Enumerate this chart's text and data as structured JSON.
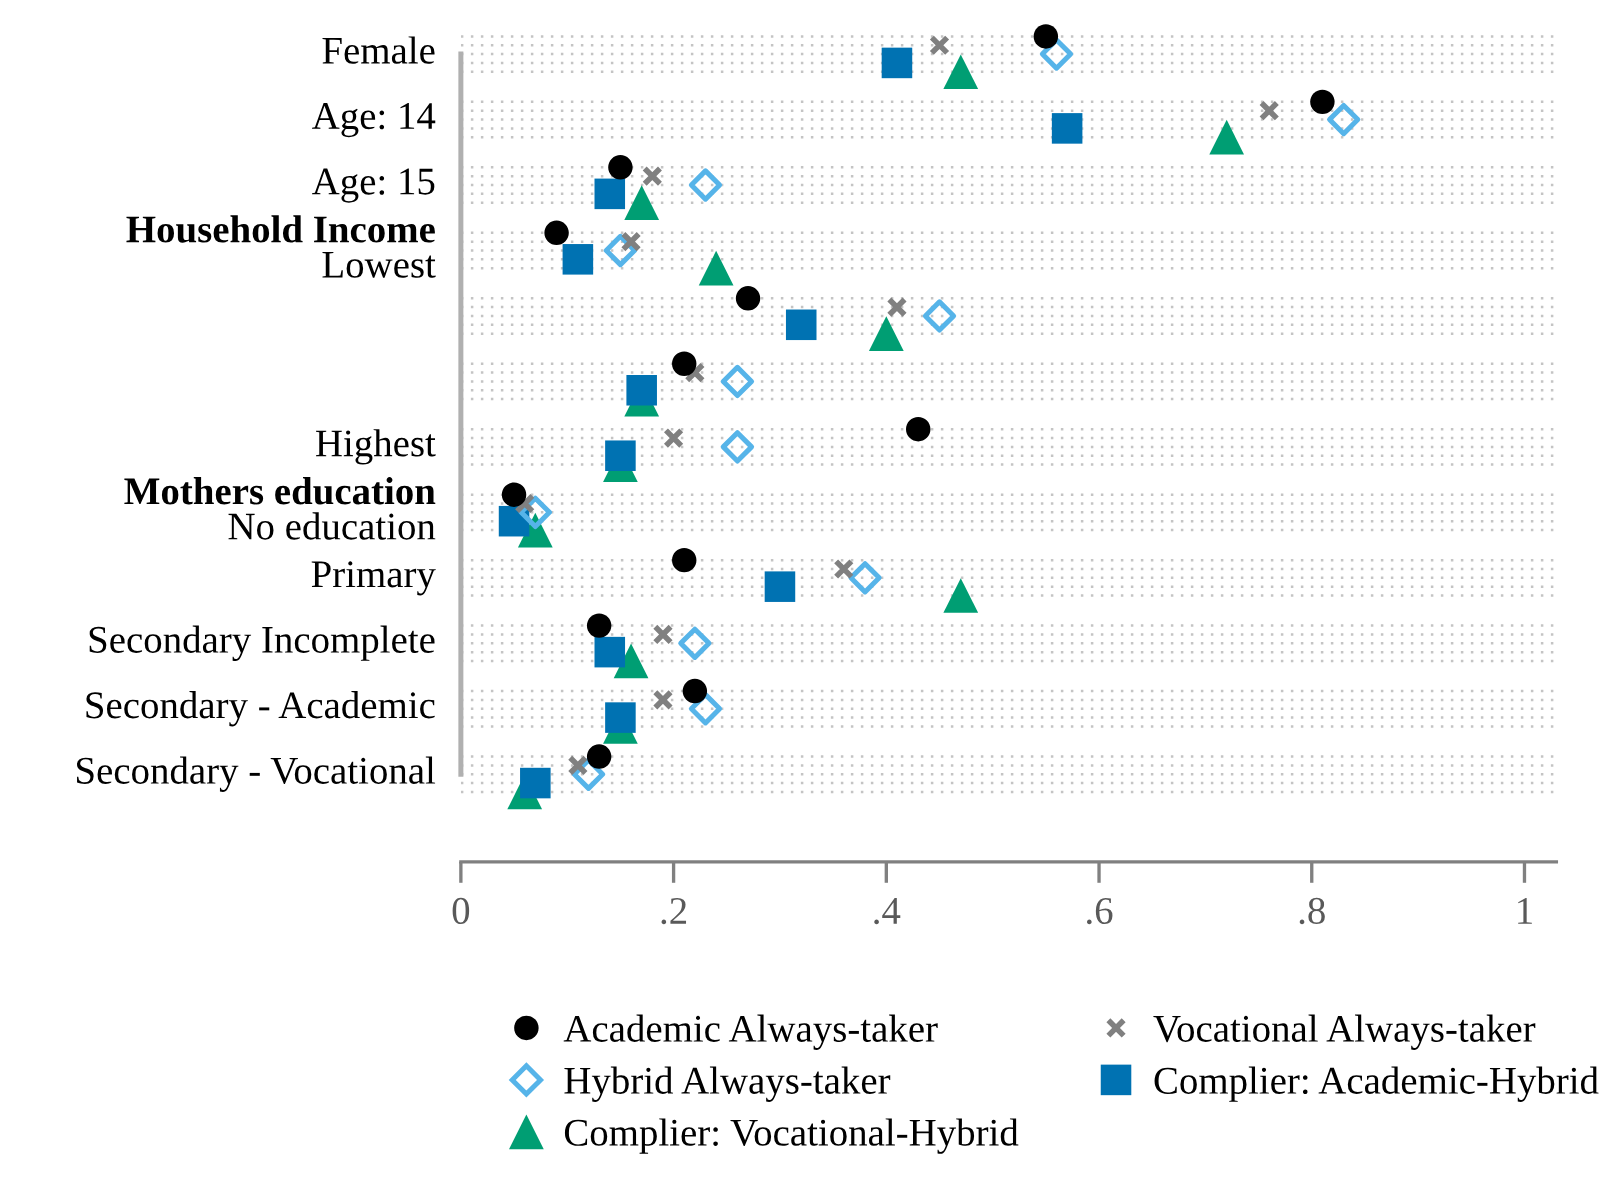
{
  "chart_data": {
    "type": "scatter",
    "orientation": "horizontal",
    "categories": [
      "Female",
      "Age: 14",
      "Age: 15",
      "Household Income\nLowest",
      null,
      null,
      "Highest",
      "Mothers education\nNo education",
      "Primary",
      "Secondary Incomplete",
      "Secondary - Academic",
      "Secondary - Vocational"
    ],
    "series": [
      {
        "name": "Academic Always-taker",
        "color": "#000000",
        "marker": "circle",
        "values": [
          0.55,
          0.81,
          0.15,
          0.09,
          0.27,
          0.21,
          0.43,
          0.05,
          0.21,
          0.13,
          0.22,
          0.13
        ]
      },
      {
        "name": "Vocational Always-taker",
        "color": "#808080",
        "marker": "cross",
        "values": [
          0.45,
          0.76,
          0.18,
          0.16,
          0.41,
          0.22,
          0.2,
          0.06,
          0.36,
          0.19,
          0.19,
          0.11
        ]
      },
      {
        "name": "Hybrid Always-taker",
        "color": "#56b4e9",
        "marker": "diamond",
        "values": [
          0.56,
          0.83,
          0.23,
          0.15,
          0.45,
          0.26,
          0.26,
          0.07,
          0.38,
          0.22,
          0.23,
          0.12
        ]
      },
      {
        "name": "Complier: Academic-Hybrid",
        "color": "#0072b2",
        "marker": "square",
        "values": [
          0.41,
          0.57,
          0.14,
          0.11,
          0.32,
          0.17,
          0.15,
          0.05,
          0.3,
          0.14,
          0.15,
          0.07
        ]
      },
      {
        "name": "Complier: Vocational-Hybrid",
        "color": "#009e73",
        "marker": "triangle",
        "values": [
          0.47,
          0.72,
          0.17,
          0.24,
          0.4,
          0.17,
          0.15,
          0.07,
          0.47,
          0.16,
          0.15,
          0.06
        ]
      }
    ],
    "xlim": [
      0,
      1.03
    ],
    "xticks": [
      0,
      {
        "value": 0.2,
        "label": ".2"
      },
      {
        "value": 0.4,
        "label": ".4"
      },
      {
        "value": 0.6,
        "label": ".6"
      },
      {
        "value": 0.8,
        "label": ".8"
      },
      1
    ],
    "grid": "y",
    "legend": "bottom"
  }
}
